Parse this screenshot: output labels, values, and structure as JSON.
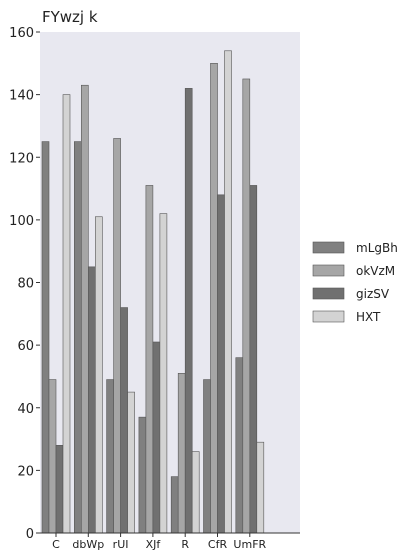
{
  "chart_data": {
    "type": "bar",
    "title": "FYwzj k",
    "xlabel": "",
    "ylabel": "",
    "ylim": [
      0,
      160
    ],
    "yticks": [
      0,
      20,
      40,
      60,
      80,
      100,
      120,
      140,
      160
    ],
    "grid": false,
    "legend_position": "right",
    "categories": [
      "C",
      "dbWp",
      "rUI",
      "XJf",
      "R",
      "CfR",
      "UmFR"
    ],
    "series": [
      {
        "name": "mLgBh",
        "color": "#808080",
        "values": [
          125,
          125,
          49,
          37,
          18,
          49,
          56
        ]
      },
      {
        "name": "okVzM",
        "color": "#a6a6a6",
        "values": [
          49,
          143,
          126,
          111,
          51,
          150,
          145
        ]
      },
      {
        "name": "gizSV",
        "color": "#707070",
        "values": [
          28,
          85,
          72,
          61,
          142,
          108,
          111
        ]
      },
      {
        "name": "HXT",
        "color": "#d3d3d3",
        "values": [
          140,
          101,
          45,
          102,
          26,
          154,
          29
        ]
      }
    ],
    "plot_background": "#e8e8f0"
  }
}
